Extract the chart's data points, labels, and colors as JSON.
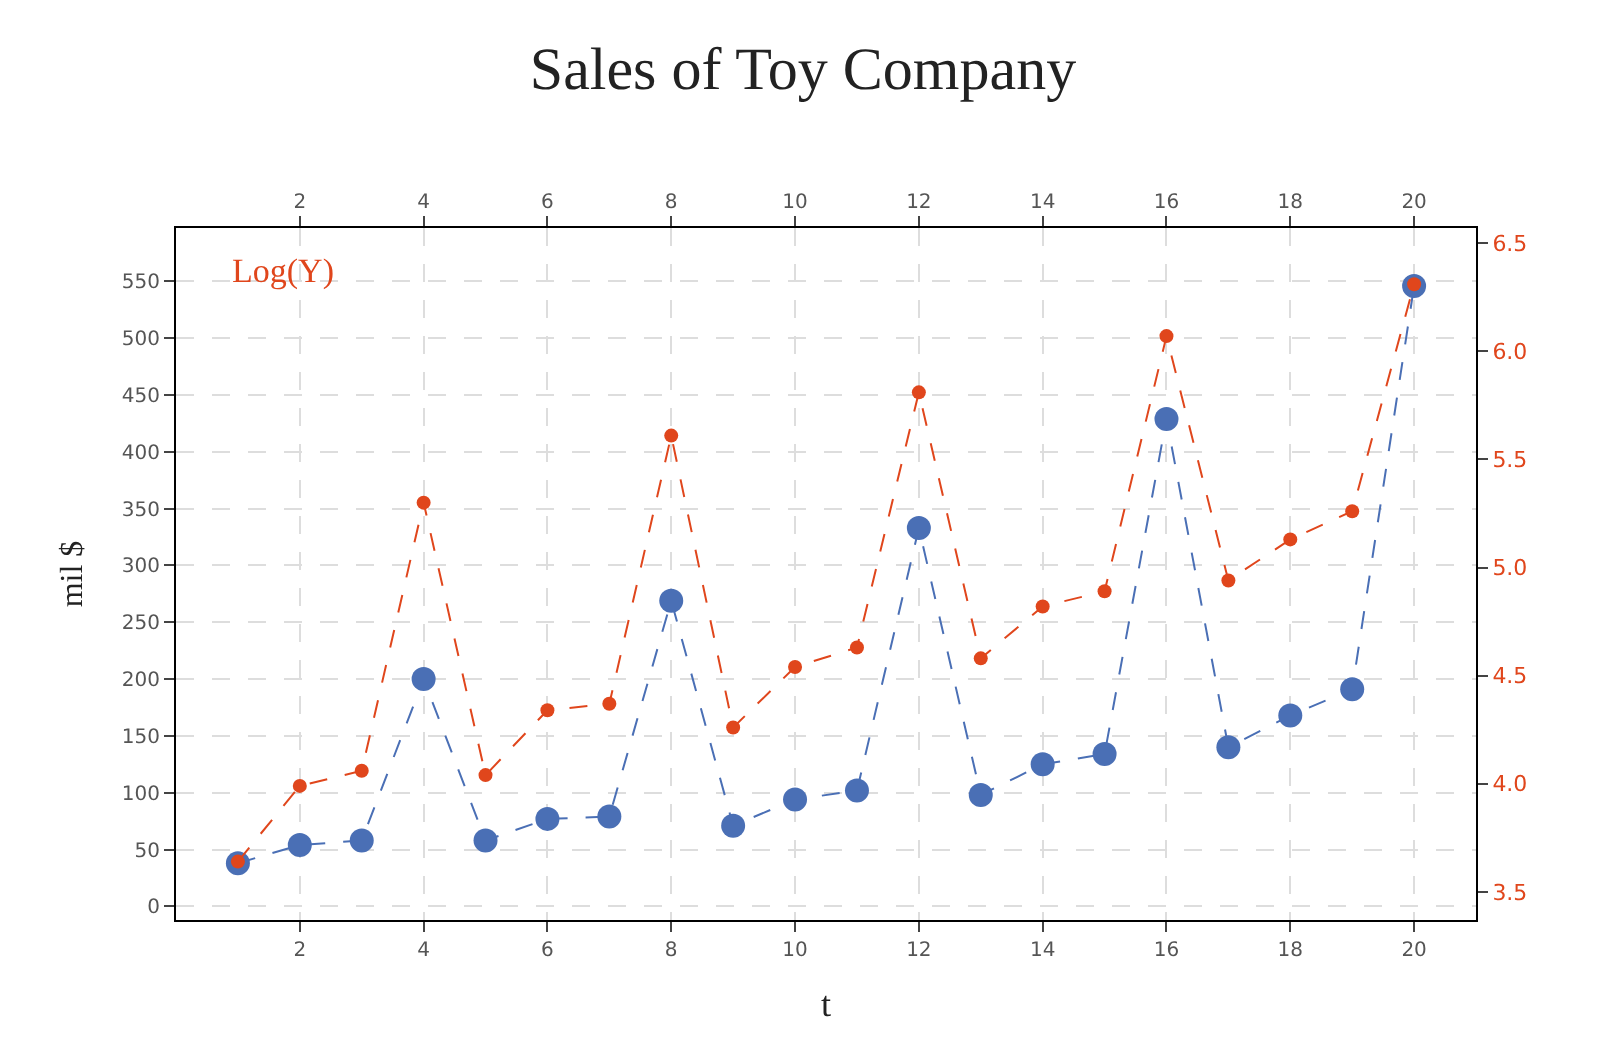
{
  "chart_data": {
    "type": "line",
    "title": "Sales of Toy Company",
    "xlabel": "t",
    "ylabel": "mil $",
    "x": [
      1,
      2,
      3,
      4,
      5,
      6,
      7,
      8,
      9,
      10,
      11,
      12,
      13,
      14,
      15,
      16,
      17,
      18,
      19,
      20
    ],
    "series": [
      {
        "color": "#4a6fb5",
        "values": [
          38,
          54,
          58,
          200,
          58,
          77,
          79,
          269,
          71,
          94,
          102,
          333,
          98,
          125,
          134,
          429,
          140,
          168,
          191,
          546
        ]
      },
      {
        "name": "Log(Y)",
        "color": "#e0461c",
        "axis": "y2",
        "values": [
          3.64,
          3.99,
          4.06,
          5.3,
          4.04,
          4.34,
          4.37,
          5.61,
          4.26,
          4.54,
          4.63,
          5.81,
          4.58,
          4.82,
          4.89,
          6.07,
          4.94,
          5.13,
          5.26,
          6.31
        ]
      }
    ],
    "xlim": [
      0,
      21
    ],
    "xticks": [
      2,
      4,
      6,
      8,
      10,
      12,
      14,
      16,
      18,
      20
    ],
    "x2lim": [
      0,
      21
    ],
    "x2ticks": [
      2,
      4,
      6,
      8,
      10,
      12,
      14,
      16,
      18,
      20
    ],
    "ylim": [
      -12,
      597
    ],
    "yticks": [
      0,
      50,
      100,
      150,
      200,
      250,
      300,
      350,
      400,
      450,
      500,
      550
    ],
    "y2lim": [
      3.37,
      6.57
    ],
    "y2ticks": [
      {
        "value": 3.5,
        "label": "3.5"
      },
      {
        "value": 4.0,
        "label": "4.0"
      },
      {
        "value": 4.5,
        "label": "4.5"
      },
      {
        "value": 5.0,
        "label": "5.0"
      },
      {
        "value": 5.5,
        "label": "5.5"
      },
      {
        "value": 6.0,
        "label": "6.0"
      },
      {
        "value": 6.5,
        "label": "6.5"
      }
    ],
    "grid": true,
    "legend": false,
    "marker": "circle",
    "line_style": "dashed"
  }
}
